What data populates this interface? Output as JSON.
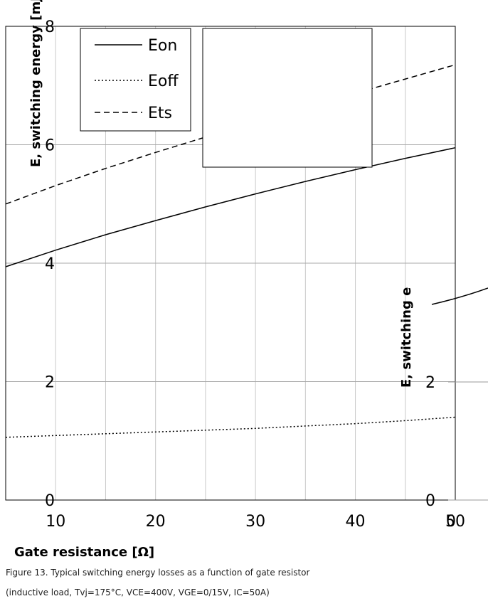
{
  "chart_data": {
    "type": "line",
    "xlabel": "Gate resistance [Ω]",
    "ylabel": "E, switching energy [mJ]",
    "xlim": [
      5,
      50
    ],
    "ylim": [
      0,
      8
    ],
    "x_ticks": [
      "10",
      "20",
      "30",
      "40",
      "50"
    ],
    "y_ticks": [
      "0",
      "2",
      "4",
      "6",
      "8"
    ],
    "grid": true,
    "legend_position": "top-left",
    "x": [
      5,
      10,
      15,
      20,
      25,
      30,
      35,
      40,
      45,
      50
    ],
    "series": [
      {
        "name": "Eon",
        "style": "solid",
        "values": [
          3.94,
          4.22,
          4.48,
          4.72,
          4.95,
          5.17,
          5.38,
          5.58,
          5.77,
          5.95
        ]
      },
      {
        "name": "Eoff",
        "style": "dotted",
        "values": [
          1.06,
          1.09,
          1.12,
          1.15,
          1.18,
          1.21,
          1.25,
          1.29,
          1.34,
          1.4
        ]
      },
      {
        "name": "Ets",
        "style": "dashed",
        "values": [
          5.0,
          5.31,
          5.6,
          5.87,
          6.13,
          6.38,
          6.63,
          6.87,
          7.11,
          7.35
        ]
      }
    ]
  },
  "right_panel": {
    "ylabel": "E, switching e",
    "y_ticks": [
      "0",
      "2"
    ],
    "x_ticks": [
      "0"
    ]
  },
  "footer": {
    "line1": "Figure 13. Typical switching energy losses as a function of gate resistor",
    "line2": "(inductive load, Tvj=175°C, VCE=400V, VGE=0/15V, IC=50A)"
  }
}
